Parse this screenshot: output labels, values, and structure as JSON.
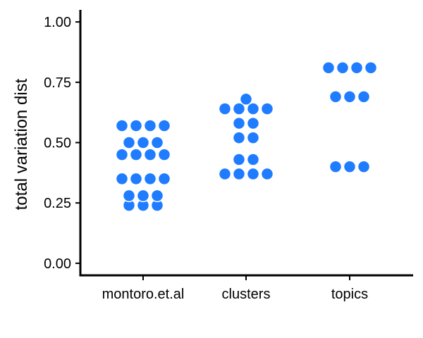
{
  "chart_data": {
    "type": "scatter",
    "title": "",
    "xlabel": "",
    "ylabel": "total variation dist",
    "categories": [
      "montoro.et.al",
      "clusters",
      "topics"
    ],
    "ylim": [
      -0.05,
      1.05
    ],
    "yticks": [
      0.0,
      0.25,
      0.5,
      0.75,
      1.0
    ],
    "ytick_labels": [
      "0.00",
      "0.25",
      "0.50",
      "0.75",
      "1.00"
    ],
    "grid": false,
    "legend": "none",
    "point_color": "#1f7cff",
    "series": [
      {
        "values": [
          0.24,
          0.24,
          0.24,
          0.28,
          0.28,
          0.28,
          0.35,
          0.35,
          0.35,
          0.35,
          0.45,
          0.45,
          0.45,
          0.45,
          0.5,
          0.5,
          0.5,
          0.57,
          0.57,
          0.57,
          0.57
        ]
      },
      {
        "values": [
          0.37,
          0.37,
          0.37,
          0.37,
          0.43,
          0.43,
          0.52,
          0.52,
          0.58,
          0.58,
          0.64,
          0.64,
          0.64,
          0.64,
          0.68
        ]
      },
      {
        "values": [
          0.4,
          0.4,
          0.4,
          0.69,
          0.69,
          0.69,
          0.81,
          0.81,
          0.81,
          0.81
        ]
      }
    ]
  }
}
